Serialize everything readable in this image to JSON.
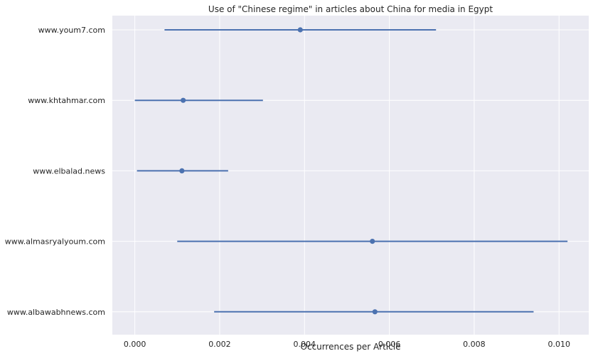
{
  "chart_data": {
    "type": "errorbar",
    "title": "Use of \"Chinese regime\" in articles about China for media in Egypt",
    "xlabel": "Occurrences per Article",
    "ylabel": "",
    "xlim": [
      -0.00053,
      0.0107
    ],
    "x_ticks": [
      "0.000",
      "0.002",
      "0.004",
      "0.006",
      "0.008",
      "0.010"
    ],
    "x_tick_values": [
      0.0,
      0.002,
      0.004,
      0.006,
      0.008,
      0.01
    ],
    "grid": true,
    "categories": [
      "www.youm7.com",
      "www.khtahmar.com",
      "www.elbalad.news",
      "www.almasryalyoum.com",
      "www.albawabhnews.com"
    ],
    "series": [
      {
        "points": [
          {
            "category": "www.youm7.com",
            "value": 0.0039,
            "low": 0.0007,
            "high": 0.0071
          },
          {
            "category": "www.khtahmar.com",
            "value": 0.00114,
            "low": 0.0,
            "high": 0.00302
          },
          {
            "category": "www.elbalad.news",
            "value": 0.00111,
            "low": 5e-05,
            "high": 0.0022
          },
          {
            "category": "www.almasryalyoum.com",
            "value": 0.0056,
            "low": 0.001,
            "high": 0.0102
          },
          {
            "category": "www.albawabhnews.com",
            "value": 0.00566,
            "low": 0.00187,
            "high": 0.0094
          }
        ]
      }
    ],
    "colors": {
      "background": "#eaeaf2",
      "grid": "#ffffff",
      "marker": "#4c72b0",
      "text": "#262626"
    }
  }
}
